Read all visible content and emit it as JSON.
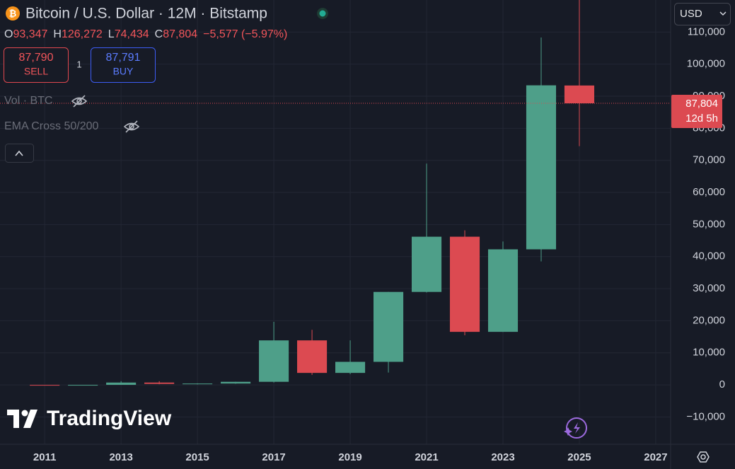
{
  "header": {
    "title": "Bitcoin / U.S. Dollar · 12M · Bitstamp",
    "ohlc": [
      {
        "label": "O",
        "text": "93,347"
      },
      {
        "label": "H",
        "text": "126,272"
      },
      {
        "label": "L",
        "text": "74,434"
      },
      {
        "label": "C",
        "text": "87,804"
      }
    ],
    "change": "−5,577 (−5.97%)"
  },
  "trade": {
    "sell_price": "87,790",
    "sell": "SELL",
    "quantity": "1",
    "buy_price": "87,791",
    "buy": "BUY"
  },
  "indicators": [
    "Vol · BTC",
    "EMA Cross 50/200"
  ],
  "currency": "USD",
  "logo": "TradingView",
  "chart_data": {
    "type": "candlestick",
    "x": [
      2011,
      2012,
      2013,
      2014,
      2015,
      2016,
      2017,
      2018,
      2019,
      2020,
      2021,
      2022,
      2023,
      2024,
      2025
    ],
    "open": [
      5,
      4.7,
      13.5,
      732,
      320,
      430,
      963,
      13880,
      3742,
      7194,
      28990,
      46200,
      16540,
      42270,
      93347
    ],
    "high": [
      7,
      16,
      1163,
      1165,
      495,
      980,
      19666,
      17176,
      13880,
      29000,
      69000,
      48190,
      44700,
      108300,
      126272
    ],
    "low": [
      2,
      4,
      13,
      200,
      152,
      350,
      750,
      3122,
      3350,
      3850,
      28800,
      15460,
      16500,
      38500,
      74434
    ],
    "close": [
      4.7,
      13.5,
      732,
      320,
      430,
      963,
      13880,
      3742,
      7194,
      28990,
      46200,
      16540,
      42270,
      93400,
      87804
    ],
    "up_color": "#4e9f89",
    "down_color": "#dc4a51",
    "xlim": [
      2009.83,
      2027.39
    ],
    "xticks": [
      2011,
      2013,
      2015,
      2017,
      2019,
      2021,
      2023,
      2025,
      2027
    ],
    "ylim": [
      -18500,
      120000
    ],
    "yticks": [
      {
        "value": -10000,
        "label": "−10,000"
      },
      0,
      {
        "value": 10000,
        "label": "10,000"
      },
      {
        "value": 20000,
        "label": "20,000"
      },
      {
        "value": 30000,
        "label": "30,000"
      },
      {
        "value": 40000,
        "label": "40,000"
      },
      {
        "value": 50000,
        "label": "50,000"
      },
      {
        "value": 60000,
        "label": "60,000"
      },
      {
        "value": 70000,
        "label": "70,000"
      },
      {
        "value": 80000,
        "label": "80,000"
      },
      {
        "value": 90000,
        "label": "90,000"
      },
      {
        "value": 100000,
        "label": "100,000"
      },
      {
        "value": 110000,
        "label": "110,000"
      }
    ],
    "grid": true,
    "last_price": {
      "value": 87804,
      "label": "87,804"
    },
    "countdown": "12d 5h"
  }
}
